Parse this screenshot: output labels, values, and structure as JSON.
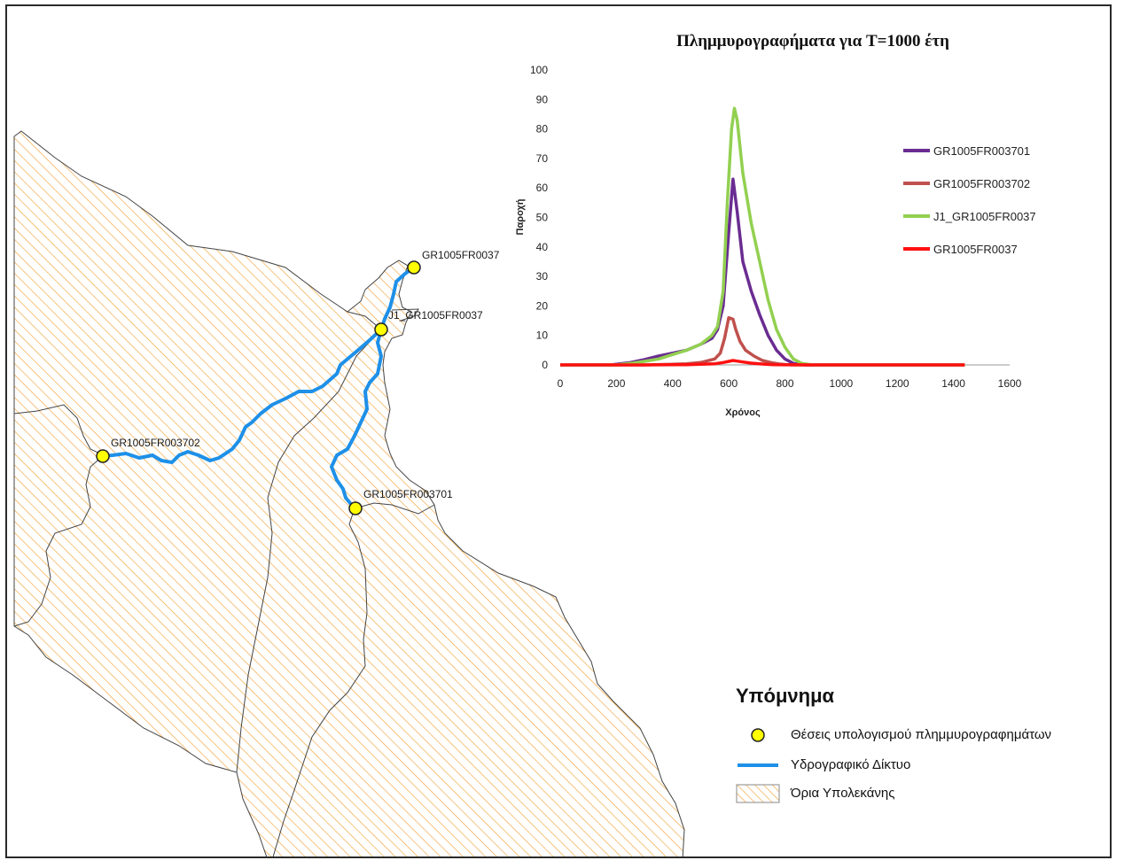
{
  "map": {
    "sites": [
      {
        "id": "GR1005FR0037",
        "label": "GR1005FR0037"
      },
      {
        "id": "J1_GR1005FR0037",
        "label": "J1_GR1005FR0037"
      },
      {
        "id": "GR1005FR003702",
        "label": "GR1005FR003702"
      },
      {
        "id": "GR1005FR003701",
        "label": "GR1005FR003701"
      }
    ],
    "colors": {
      "stream": "#1e90e8",
      "site_fill": "#ffff00",
      "hatch": "#f2a33a",
      "boundary": "#444444"
    }
  },
  "legend": {
    "title": "Υπόμνημα",
    "items": [
      {
        "symbol": "yellow-circle",
        "label": "Θέσεις υπολογισμού πλημμυρογραφημάτων"
      },
      {
        "symbol": "blue-line",
        "label": "Υδρογραφικό Δίκτυο"
      },
      {
        "symbol": "hatched-box",
        "label": "Όρια Υπολεκάνης"
      }
    ]
  },
  "chart_data": {
    "type": "line",
    "title": "Πλημμυρογραφήματα για T=1000 έτη",
    "xlabel": "Χρόνος",
    "ylabel": "Παροχή",
    "xlim": [
      0,
      1600
    ],
    "ylim": [
      0,
      100
    ],
    "xticks": [
      "0",
      "200",
      "400",
      "600",
      "800",
      "1000",
      "1200",
      "1400",
      "1600"
    ],
    "yticks": [
      "0",
      "10",
      "20",
      "30",
      "40",
      "50",
      "60",
      "70",
      "80",
      "90",
      "100"
    ],
    "legend_position": "right",
    "series": [
      {
        "name": "GR1005FR003701",
        "color": "#6a2c91",
        "x": [
          0,
          180,
          250,
          300,
          350,
          400,
          450,
          500,
          540,
          560,
          580,
          600,
          615,
          630,
          650,
          680,
          710,
          740,
          770,
          800,
          830,
          870,
          900,
          1000,
          1440
        ],
        "y": [
          0,
          0,
          0.8,
          1.8,
          3,
          4,
          5,
          7,
          9,
          12,
          20,
          45,
          63,
          52,
          35,
          25,
          17,
          10,
          5,
          2,
          0.5,
          0,
          0,
          0,
          0
        ]
      },
      {
        "name": "GR1005FR003702",
        "color": "#c0504d",
        "x": [
          0,
          300,
          400,
          450,
          500,
          550,
          570,
          585,
          600,
          615,
          625,
          640,
          660,
          690,
          720,
          750,
          780,
          820,
          900,
          1440
        ],
        "y": [
          0,
          0,
          0.2,
          0.4,
          0.8,
          2,
          4,
          9,
          16,
          15.5,
          12,
          8,
          5,
          3,
          1.5,
          0.8,
          0.3,
          0,
          0,
          0
        ]
      },
      {
        "name": "J1_GR1005FR0037",
        "color": "#92d050",
        "x": [
          0,
          200,
          250,
          300,
          350,
          400,
          450,
          500,
          540,
          560,
          580,
          595,
          610,
          620,
          630,
          650,
          680,
          710,
          740,
          770,
          800,
          830,
          860,
          900,
          1440
        ],
        "y": [
          0,
          0,
          0.5,
          1.2,
          2,
          3.5,
          5,
          7,
          10,
          13,
          25,
          55,
          80,
          87,
          83,
          65,
          48,
          35,
          22,
          12,
          6,
          2,
          0.5,
          0,
          0
        ]
      },
      {
        "name": "GR1005FR0037",
        "color": "#ff1010",
        "x": [
          0,
          300,
          450,
          550,
          580,
          600,
          615,
          630,
          650,
          680,
          720,
          760,
          900,
          1440
        ],
        "y": [
          0,
          0,
          0.1,
          0.4,
          0.8,
          1.2,
          1.5,
          1.3,
          1,
          0.6,
          0.3,
          0.1,
          0,
          0
        ]
      }
    ]
  }
}
